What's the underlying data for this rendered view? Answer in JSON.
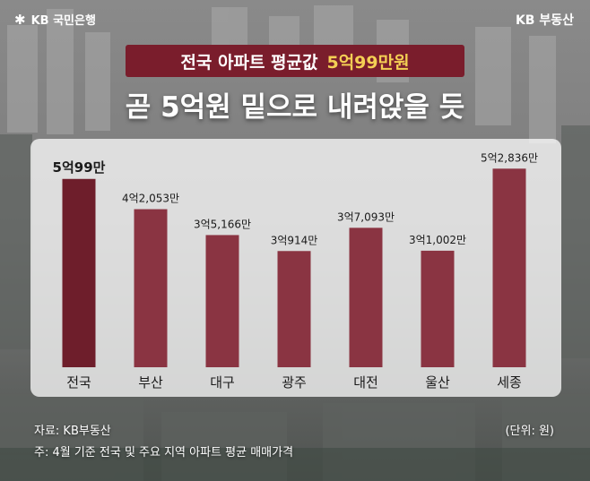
{
  "header": {
    "bank_logo_text": "KB 국민은행",
    "bank_logo_icon": "kb-star-icon",
    "brand_text": "KB 부동산"
  },
  "title": {
    "banner_part1": "전국 아파트 평균값",
    "banner_part2": "5억99만원",
    "headline": "곧 5억원 밑으로 내려앉을 듯"
  },
  "colors": {
    "bar": "#8a3442",
    "bar_highlight": "#6e1e2b",
    "banner": "#7a1d2c",
    "banner_accent": "#f4cf54"
  },
  "chart_data": {
    "type": "bar",
    "categories": [
      "전국",
      "부산",
      "대구",
      "광주",
      "대전",
      "울산",
      "세종"
    ],
    "values": [
      50099,
      42053,
      35166,
      30914,
      37093,
      31002,
      52836
    ],
    "value_labels": [
      "5억99만",
      "4억2,053만",
      "3억5,166만",
      "3억914만",
      "3억7,093만",
      "3억1,002만",
      "5억2,836만"
    ],
    "unit": "만원",
    "highlight_index": 0,
    "ylim": [
      0,
      56000
    ],
    "grid": false,
    "legend": "none"
  },
  "footer": {
    "source": "자료: KB부동산",
    "unit_note": "(단위: 원)",
    "note": "주: 4월 기준 전국 및 주요 지역 아파트 평균 매매가격"
  }
}
